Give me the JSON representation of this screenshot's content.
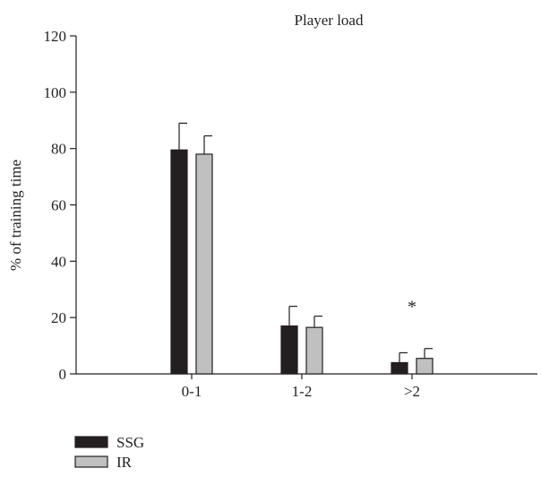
{
  "chart_data": {
    "type": "bar",
    "title": "Player load",
    "xlabel": "",
    "ylabel": "% of training time",
    "categories": [
      "0-1",
      "1-2",
      ">2"
    ],
    "series": [
      {
        "name": "SSG",
        "values": [
          79.5,
          17,
          4
        ],
        "errors": [
          9.5,
          7,
          3.5
        ],
        "color": "#231f20"
      },
      {
        "name": "IR",
        "values": [
          78,
          16.5,
          5.5
        ],
        "errors": [
          6.5,
          4,
          3.5
        ],
        "color": "#c0c0c0"
      }
    ],
    "ylim": [
      0,
      120
    ],
    "yticks": [
      0,
      20,
      40,
      60,
      80,
      100,
      120
    ],
    "annotations": [
      {
        "text": "*",
        "category": ">2",
        "value": 25
      }
    ],
    "grid": false,
    "legend": "bottom-left"
  }
}
